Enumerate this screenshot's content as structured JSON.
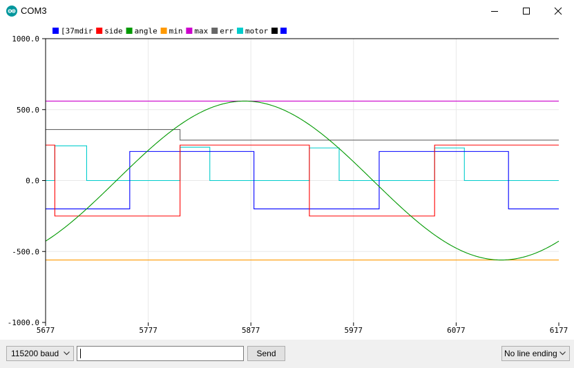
{
  "window": {
    "title": "COM3"
  },
  "icons": {
    "app": "arduino-logo-icon",
    "minimize": "minimize-icon",
    "maximize": "maximize-icon",
    "close": "close-icon",
    "dropdown": "chevron-down-icon"
  },
  "chart_data": {
    "type": "line",
    "xlim": [
      5677,
      6177
    ],
    "ylim": [
      -1000,
      1000
    ],
    "x_ticks": [
      "5677",
      "5777",
      "5877",
      "5977",
      "6077",
      "6177"
    ],
    "y_ticks": [
      "1000.0",
      "500.0",
      "0.0",
      "-500.0",
      "-1000.0"
    ],
    "grid": true,
    "legend_placement": "top-left",
    "legend": [
      {
        "label": "[37mdir",
        "color": "#0000ff"
      },
      {
        "label": "side",
        "color": "#ff0000"
      },
      {
        "label": "angle",
        "color": "#009900"
      },
      {
        "label": "min",
        "color": "#ff9900"
      },
      {
        "label": "max",
        "color": "#cc00cc"
      },
      {
        "label": "err",
        "color": "#666666"
      },
      {
        "label": "motor",
        "color": "#00cccc"
      },
      {
        "label": "",
        "color": "#000000"
      },
      {
        "label": "",
        "color": "#0000ff"
      }
    ],
    "series": [
      {
        "name": "[37mdir",
        "color": "#0000ff",
        "points": [
          [
            5677,
            -200
          ],
          [
            5686,
            -200
          ],
          [
            5759,
            -200
          ],
          [
            5759,
            205
          ],
          [
            5880,
            205
          ],
          [
            5880,
            -200
          ],
          [
            6002,
            -200
          ],
          [
            6002,
            205
          ],
          [
            6128,
            205
          ],
          [
            6128,
            -200
          ],
          [
            6177,
            -200
          ]
        ]
      },
      {
        "name": "side",
        "color": "#ff0000",
        "points": [
          [
            5677,
            250
          ],
          [
            5686,
            250
          ],
          [
            5686,
            -250
          ],
          [
            5808,
            -250
          ],
          [
            5808,
            250
          ],
          [
            5934,
            250
          ],
          [
            5934,
            -250
          ],
          [
            6056,
            -250
          ],
          [
            6056,
            250
          ],
          [
            6177,
            250
          ]
        ]
      },
      {
        "name": "min",
        "color": "#ff9900",
        "points": [
          [
            5677,
            -560
          ],
          [
            6177,
            -560
          ]
        ]
      },
      {
        "name": "max",
        "color": "#cc00cc",
        "points": [
          [
            5677,
            560
          ],
          [
            6177,
            560
          ]
        ]
      },
      {
        "name": "err",
        "color": "#666666",
        "points": [
          [
            5677,
            360
          ],
          [
            5808,
            360
          ],
          [
            5808,
            285
          ],
          [
            6177,
            285
          ]
        ]
      },
      {
        "name": "motor",
        "color": "#00cccc",
        "points": [
          [
            5677,
            0
          ],
          [
            5686,
            0
          ],
          [
            5686,
            245
          ],
          [
            5717,
            245
          ],
          [
            5717,
            0
          ],
          [
            5808,
            0
          ],
          [
            5808,
            235
          ],
          [
            5837,
            235
          ],
          [
            5837,
            0
          ],
          [
            5934,
            0
          ],
          [
            5934,
            230
          ],
          [
            5963,
            230
          ],
          [
            5963,
            0
          ],
          [
            6056,
            0
          ],
          [
            6056,
            230
          ],
          [
            6085,
            230
          ],
          [
            6085,
            0
          ],
          [
            6177,
            0
          ]
        ]
      },
      {
        "name": "angle",
        "color": "#009900",
        "sine": {
          "amplitude": 560,
          "x_peak": 5871,
          "half_period": 250,
          "x_from": 5677,
          "x_to": 6177
        }
      }
    ]
  },
  "bottom": {
    "baud_value": "115200 baud",
    "input_value": "",
    "send_label": "Send",
    "line_ending_value": "No line ending"
  }
}
